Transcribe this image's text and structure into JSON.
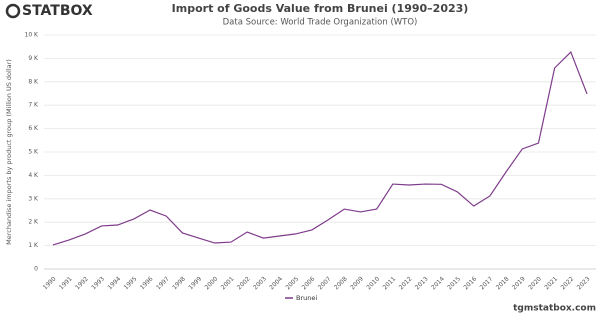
{
  "chart_data": {
    "type": "line",
    "logo": "STATBOX",
    "title": "Import of Goods Value from Brunei (1990–2023)",
    "subtitle": "Data Source: World Trade Organization (WTO)",
    "y_label": "Merchandise imports by product group (Million US dollar)",
    "footer": "tgmstatbox.com",
    "categories": [
      "1990",
      "1991",
      "1992",
      "1993",
      "1994",
      "1995",
      "1996",
      "1997",
      "1998",
      "1999",
      "2000",
      "2001",
      "2002",
      "2003",
      "2004",
      "2005",
      "2006",
      "2007",
      "2008",
      "2009",
      "2010",
      "2011",
      "2012",
      "2013",
      "2014",
      "2015",
      "2016",
      "2017",
      "2018",
      "2019",
      "2020",
      "2021",
      "2022",
      "2023"
    ],
    "series": [
      {
        "name": "Brunei",
        "color": "#7e3b8a",
        "values": [
          1030,
          1240,
          1500,
          1840,
          1880,
          2140,
          2520,
          2260,
          1540,
          1320,
          1110,
          1150,
          1580,
          1320,
          1410,
          1500,
          1670,
          2100,
          2560,
          2440,
          2560,
          3630,
          3590,
          3630,
          3620,
          3290,
          2690,
          3120,
          4150,
          5130,
          5380,
          8590,
          9270,
          7480
        ]
      }
    ],
    "ylim": [
      0,
      10000
    ],
    "yticks": [
      0,
      {
        "value": 1000,
        "label": "1 K"
      },
      {
        "value": 2000,
        "label": "2 K"
      },
      {
        "value": 3000,
        "label": "3 K"
      },
      {
        "value": 4000,
        "label": "4 K"
      },
      {
        "value": 5000,
        "label": "5 K"
      },
      {
        "value": 6000,
        "label": "6 K"
      },
      {
        "value": 7000,
        "label": "7 K"
      },
      {
        "value": 8000,
        "label": "8 K"
      },
      {
        "value": 9000,
        "label": "9 K"
      },
      {
        "value": 10000,
        "label": "10 K"
      }
    ],
    "grid": true
  }
}
